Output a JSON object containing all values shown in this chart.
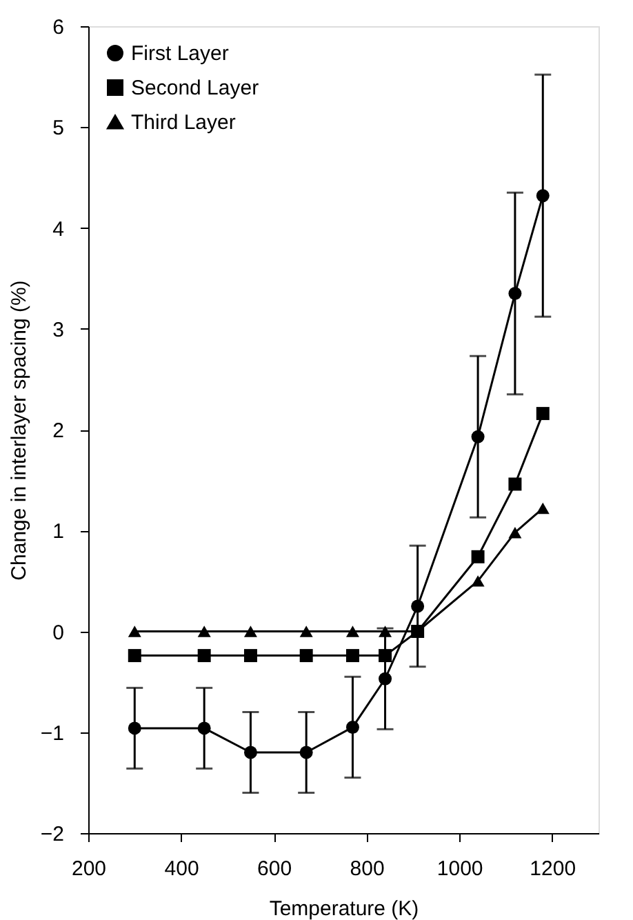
{
  "chart_data": {
    "type": "line",
    "xlabel": "Temperature (K)",
    "ylabel": "Change in interlayer spacing (%)",
    "xlim": [
      200,
      1300
    ],
    "xticks": [
      200,
      400,
      600,
      800,
      1000,
      1200
    ],
    "ylim": [
      -2,
      6
    ],
    "yticks": [
      -2,
      -1,
      0,
      1,
      2,
      3,
      4,
      5,
      6
    ],
    "grid": false,
    "legend": "top left",
    "line_style": "solid",
    "x": [
      300,
      450,
      550,
      670,
      770,
      840,
      910,
      1040,
      1120,
      1180
    ],
    "series": [
      {
        "name": "First Layer",
        "color": "#000000",
        "marker": "circle",
        "values": [
          -0.96,
          -0.96,
          -1.2,
          -1.2,
          -0.95,
          -0.47,
          0.25,
          1.93,
          3.35,
          4.32
        ],
        "errors": [
          0.4,
          0.4,
          0.4,
          0.4,
          0.5,
          0.5,
          0.6,
          0.8,
          1.0,
          1.2
        ]
      },
      {
        "name": "Second Layer",
        "color": "#000000",
        "marker": "square",
        "values": [
          -0.24,
          -0.24,
          -0.24,
          -0.24,
          -0.24,
          -0.24,
          0,
          0.74,
          1.46,
          2.16
        ]
      },
      {
        "name": "Third Layer",
        "color": "#000000",
        "marker": "triangle",
        "values": [
          0,
          0,
          0,
          0,
          0,
          0,
          0,
          0.5,
          0.98,
          1.22
        ]
      }
    ]
  }
}
